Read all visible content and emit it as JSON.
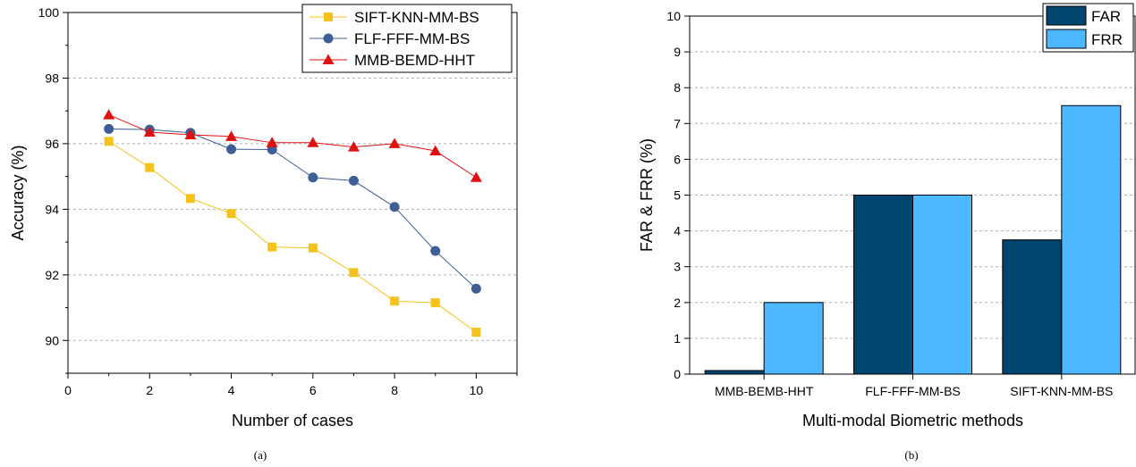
{
  "chart_data": [
    {
      "type": "line",
      "caption": "(a)",
      "xlabel": "Number of cases",
      "ylabel": "Accuracy (%)",
      "xlim": [
        0,
        11
      ],
      "ylim": [
        89,
        100
      ],
      "xticks": [
        0,
        2,
        4,
        6,
        8,
        10
      ],
      "yticks": [
        90,
        92,
        94,
        96,
        98,
        100
      ],
      "grid": "horizontal dashed",
      "legend_position": "top-right",
      "x": [
        1,
        2,
        3,
        4,
        5,
        6,
        7,
        8,
        9,
        10
      ],
      "series": [
        {
          "name": "SIFT-KNN-MM-BS",
          "color": "#f5c21b",
          "marker": "square",
          "values": [
            96.07,
            95.27,
            94.33,
            93.87,
            92.85,
            92.82,
            92.07,
            91.2,
            91.15,
            90.25
          ]
        },
        {
          "name": "FLF-FFF-MM-BS",
          "color": "#3d5f95",
          "marker": "circle",
          "values": [
            96.45,
            96.43,
            96.33,
            95.83,
            95.82,
            94.97,
            94.87,
            94.07,
            92.73,
            91.58
          ]
        },
        {
          "name": "MMB-BEMD-HHT",
          "color": "#e01010",
          "marker": "triangle",
          "values": [
            96.88,
            96.35,
            96.27,
            96.22,
            96.03,
            96.03,
            95.9,
            96.0,
            95.78,
            94.97
          ]
        }
      ]
    },
    {
      "type": "bar",
      "caption": "(b)",
      "xlabel": "Multi-modal Biometric methods",
      "ylabel": "FAR & FRR (%)",
      "ylim": [
        0,
        10
      ],
      "yticks": [
        0,
        1,
        2,
        3,
        4,
        5,
        6,
        7,
        8,
        9,
        10
      ],
      "grid": "horizontal dashed",
      "legend_position": "top-right",
      "categories": [
        "MMB-BEMB-HHT",
        "FLF-FFF-MM-BS",
        "SIFT-KNN-MM-BS"
      ],
      "series": [
        {
          "name": "FAR",
          "color": "#004570",
          "values": [
            0.1,
            5.0,
            3.75
          ]
        },
        {
          "name": "FRR",
          "color": "#4db8ff",
          "values": [
            2.0,
            5.0,
            7.5
          ]
        }
      ]
    }
  ]
}
